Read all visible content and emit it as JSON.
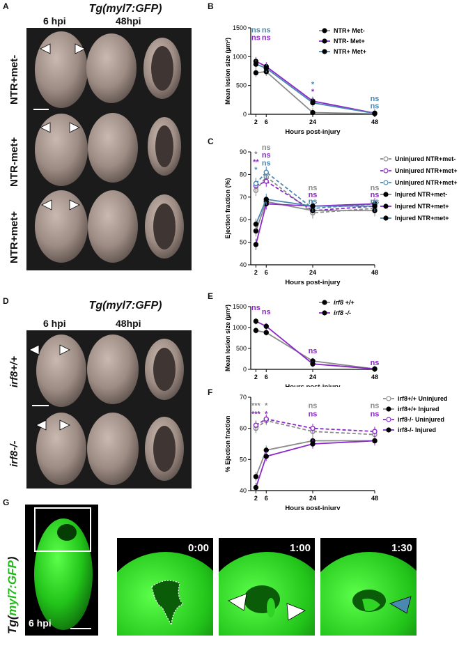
{
  "panels": {
    "A": {
      "label": "A",
      "title": "Tg(myl7:GFP)",
      "col1": "6 hpi",
      "col2": "48hpi",
      "rows": [
        "NTR+met-",
        "NTR-met+",
        "NTR+met+"
      ]
    },
    "D": {
      "label": "D",
      "title": "Tg(myl7:GFP)",
      "col1": "6 hpi",
      "col2": "48hpi",
      "rows": [
        "irf8+/+",
        "irf8-/-"
      ]
    },
    "G": {
      "label": "G",
      "side_label_prefix": "Tg(",
      "side_label_gene": "myl7:GFP",
      "side_label_suffix": ")",
      "time_label": "6 hpi",
      "frames": [
        "0:00",
        "1:00",
        "1:30"
      ]
    }
  },
  "chart_data": [
    {
      "panel": "B",
      "type": "line",
      "ylabel": "Mean lesion size (μm²)",
      "xlabel": "Hours post-injury",
      "x": [
        2,
        6,
        24,
        48
      ],
      "xticks": [
        "2",
        "6",
        "24",
        "48"
      ],
      "ylim": [
        0,
        1500
      ],
      "yticks": [
        "0",
        "500",
        "1000",
        "1500"
      ],
      "series": [
        {
          "name": "NTR+ Met-",
          "color": "#8a8a8a",
          "values": [
            720,
            740,
            30,
            10
          ]
        },
        {
          "name": "NTR- Met+",
          "color": "#8b28c8",
          "values": [
            920,
            830,
            230,
            20
          ]
        },
        {
          "name": "NTR+ Met+",
          "color": "#4a88b0",
          "values": [
            870,
            800,
            200,
            15
          ]
        }
      ],
      "annotations": [
        {
          "text": "ns",
          "x": 2,
          "y": 1420,
          "color": "#4a88b0"
        },
        {
          "text": "ns",
          "x": 2,
          "y": 1290,
          "color": "#8b28c8"
        },
        {
          "text": "ns",
          "x": 6,
          "y": 1420,
          "color": "#4a88b0"
        },
        {
          "text": "ns",
          "x": 6,
          "y": 1290,
          "color": "#8b28c8"
        },
        {
          "text": "*",
          "x": 24,
          "y": 480,
          "color": "#4a88b0"
        },
        {
          "text": "*",
          "x": 24,
          "y": 350,
          "color": "#8b28c8"
        },
        {
          "text": "ns",
          "x": 48,
          "y": 230,
          "color": "#4a88b0"
        },
        {
          "text": "ns",
          "x": 48,
          "y": 100,
          "color": "#4a88b0"
        }
      ]
    },
    {
      "panel": "C",
      "type": "line",
      "ylabel": "Ejection fraction (%)",
      "xlabel": "Hours post-injury",
      "x": [
        2,
        6,
        24,
        48
      ],
      "xticks": [
        "2",
        "6",
        "24",
        "48"
      ],
      "ylim": [
        40,
        90
      ],
      "yticks": [
        "40",
        "50",
        "60",
        "70",
        "80",
        "90"
      ],
      "series": [
        {
          "name": "Uninjured NTR+met-",
          "color": "#8a8a8a",
          "dashed": true,
          "open": true,
          "values": [
            73,
            79,
            63,
            65
          ]
        },
        {
          "name": "Uninjured NTR+met+",
          "color": "#8b28c8",
          "dashed": true,
          "open": true,
          "values": [
            75,
            77,
            64,
            66
          ]
        },
        {
          "name": "Uninjured NTR+met+",
          "color": "#4a88b0",
          "dashed": true,
          "open": true,
          "values": [
            76,
            81,
            65,
            67
          ]
        },
        {
          "name": "Injured NTR+met-",
          "color": "#8a8a8a",
          "dashed": false,
          "open": false,
          "values": [
            55,
            68,
            64,
            64
          ]
        },
        {
          "name": "Injured NTR+met+",
          "color": "#8b28c8",
          "dashed": false,
          "open": false,
          "values": [
            49,
            67,
            66,
            67
          ]
        },
        {
          "name": "Injured NTR+met+",
          "color": "#4a88b0",
          "dashed": false,
          "open": false,
          "values": [
            58,
            69,
            66,
            66
          ]
        }
      ],
      "annotations": [
        {
          "text": "ns",
          "x": 6,
          "y": 91,
          "color": "#8a8a8a"
        },
        {
          "text": "ns",
          "x": 6,
          "y": 87.5,
          "color": "#8b28c8"
        },
        {
          "text": "ns",
          "x": 6,
          "y": 84,
          "color": "#4a88b0"
        },
        {
          "text": "*",
          "x": 2,
          "y": 88,
          "color": "#8a8a8a"
        },
        {
          "text": "**",
          "x": 2,
          "y": 84.5,
          "color": "#8b28c8"
        },
        {
          "text": "*",
          "x": 2,
          "y": 81,
          "color": "#4a88b0"
        },
        {
          "text": "ns",
          "x": 24,
          "y": 73,
          "color": "#8a8a8a"
        },
        {
          "text": "ns",
          "x": 24,
          "y": 70,
          "color": "#8b28c8"
        },
        {
          "text": "ns",
          "x": 24,
          "y": 67,
          "color": "#4a88b0"
        },
        {
          "text": "ns",
          "x": 48,
          "y": 73,
          "color": "#8a8a8a"
        },
        {
          "text": "ns",
          "x": 48,
          "y": 70,
          "color": "#8b28c8"
        },
        {
          "text": "ns",
          "x": 48,
          "y": 67,
          "color": "#4a88b0"
        }
      ]
    },
    {
      "panel": "E",
      "type": "line",
      "ylabel": "Mean lesion size (μm²)",
      "xlabel": "Hours post-injury",
      "x": [
        2,
        6,
        24,
        48
      ],
      "xticks": [
        "2",
        "6",
        "24",
        "48"
      ],
      "ylim": [
        0,
        1500
      ],
      "yticks": [
        "0",
        "500",
        "1000",
        "1500"
      ],
      "series": [
        {
          "name": "irf8 +/+",
          "color": "#8a8a8a",
          "values": [
            930,
            880,
            200,
            10
          ]
        },
        {
          "name": "irf8 -/-",
          "color": "#8b28c8",
          "values": [
            1150,
            1030,
            130,
            10
          ]
        }
      ],
      "annotations": [
        {
          "text": "ns",
          "x": 2,
          "y": 1420,
          "color": "#8b28c8"
        },
        {
          "text": "ns",
          "x": 6,
          "y": 1320,
          "color": "#8b28c8"
        },
        {
          "text": "ns",
          "x": 24,
          "y": 380,
          "color": "#8b28c8"
        },
        {
          "text": "ns",
          "x": 48,
          "y": 100,
          "color": "#8b28c8"
        }
      ]
    },
    {
      "panel": "F",
      "type": "line",
      "ylabel": "% Ejection fraction",
      "xlabel": "Hours post-injury",
      "x": [
        2,
        6,
        24,
        48
      ],
      "xticks": [
        "2",
        "6",
        "24",
        "48"
      ],
      "ylim": [
        40,
        70
      ],
      "yticks": [
        "40",
        "50",
        "60",
        "70"
      ],
      "series": [
        {
          "name": "irf8+/+ Uninjured",
          "color": "#8a8a8a",
          "dashed": true,
          "open": true,
          "values": [
            60,
            62.5,
            59,
            58
          ]
        },
        {
          "name": "irf8+/+ Injured",
          "color": "#8a8a8a",
          "dashed": false,
          "open": false,
          "values": [
            44.5,
            53,
            56,
            56
          ]
        },
        {
          "name": "irf8-/- Uninjured",
          "color": "#8b28c8",
          "dashed": true,
          "open": true,
          "values": [
            61,
            63,
            60,
            59
          ]
        },
        {
          "name": "irf8-/- Injured",
          "color": "#8b28c8",
          "dashed": false,
          "open": false,
          "values": [
            41,
            51,
            55,
            56
          ]
        }
      ],
      "annotations": [
        {
          "text": "***",
          "x": 2,
          "y": 66.5,
          "color": "#8a8a8a"
        },
        {
          "text": "*",
          "x": 6,
          "y": 66.5,
          "color": "#8a8a8a"
        },
        {
          "text": "***",
          "x": 2,
          "y": 63.8,
          "color": "#8b28c8"
        },
        {
          "text": "*",
          "x": 6,
          "y": 63.8,
          "color": "#8b28c8"
        },
        {
          "text": "ns",
          "x": 24,
          "y": 66.5,
          "color": "#8a8a8a"
        },
        {
          "text": "ns",
          "x": 24,
          "y": 63.8,
          "color": "#8b28c8"
        },
        {
          "text": "ns",
          "x": 48,
          "y": 66.5,
          "color": "#8a8a8a"
        },
        {
          "text": "ns",
          "x": 48,
          "y": 63.8,
          "color": "#8b28c8"
        }
      ]
    }
  ]
}
